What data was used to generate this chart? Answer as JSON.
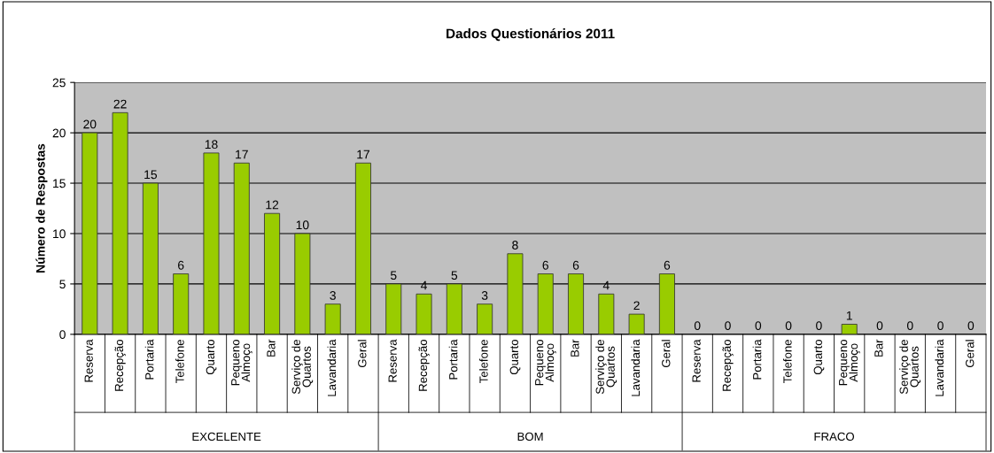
{
  "chart_data": {
    "type": "bar",
    "title": "Dados Questionários 2011",
    "ylabel": "Número de Respostas",
    "categories": [
      "Reserva",
      "Recepção",
      "Portaria",
      "Telefone",
      "Quarto",
      "Pequeno\nAlmoço",
      "Bar",
      "Serviço de\nQuartos",
      "Lavandaria",
      "Geral",
      "Reserva",
      "Recepção",
      "Portaria",
      "Telefone",
      "Quarto",
      "Pequeno\nAlmoço",
      "Bar",
      "Serviço de\nQuartos",
      "Lavandaria",
      "Geral",
      "Reserva",
      "Recepção",
      "Portaria",
      "Telefone",
      "Quarto",
      "Pequeno\nAlmoço",
      "Bar",
      "Serviço de\nQuartos",
      "Lavandaria",
      "Geral"
    ],
    "values": [
      20,
      22,
      15,
      6,
      18,
      17,
      12,
      10,
      3,
      17,
      5,
      4,
      5,
      3,
      8,
      6,
      6,
      4,
      2,
      6,
      0,
      0,
      0,
      0,
      0,
      1,
      0,
      0,
      0,
      0
    ],
    "color": "#99cc00",
    "ylim": [
      0,
      25
    ],
    "yticks": [
      0,
      5,
      10,
      15,
      20,
      25
    ],
    "grid": "y",
    "data_labels": true,
    "annotations": [
      "EXCELENTE",
      "BOM",
      "FRACO"
    ]
  }
}
